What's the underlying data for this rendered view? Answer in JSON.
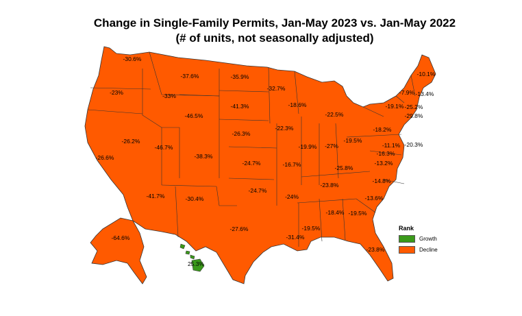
{
  "title": "Change in Single-Family Permits, Jan-May 2023 vs. Jan-May 2022",
  "subtitle": "(# of units, not seasonally adjusted)",
  "legend": {
    "title": "Rank",
    "items": [
      {
        "label": "Growth",
        "color": "#3a9a1a"
      },
      {
        "label": "Decline",
        "color": "#ff5a00"
      }
    ]
  },
  "colors": {
    "decline": "#ff5a00",
    "growth": "#3a9a1a",
    "border": "#333333"
  },
  "states": [
    {
      "label": "-30.6%"
    },
    {
      "label": "-23%"
    },
    {
      "label": "-33%"
    },
    {
      "label": "-37.6%"
    },
    {
      "label": "-35.9%"
    },
    {
      "label": "-32.7%"
    },
    {
      "label": "-41.3%"
    },
    {
      "label": "-46.5%"
    },
    {
      "label": "-26.3%"
    },
    {
      "label": "-18.6%"
    },
    {
      "label": "-22.5%"
    },
    {
      "label": "-22.3%"
    },
    {
      "label": "-26.2%"
    },
    {
      "label": "-46.7%"
    },
    {
      "label": "-38.3%"
    },
    {
      "label": "-26.6%"
    },
    {
      "label": "-24.7%"
    },
    {
      "label": "-16.7%"
    },
    {
      "label": "-19.9%"
    },
    {
      "label": "-27%"
    },
    {
      "label": "-19.5%"
    },
    {
      "label": "-18.2%"
    },
    {
      "label": "-41.7%"
    },
    {
      "label": "-30.4%"
    },
    {
      "label": "-24.7%"
    },
    {
      "label": "-24%"
    },
    {
      "label": "-27.6%"
    },
    {
      "label": "-25.8%"
    },
    {
      "label": "-23.8%"
    },
    {
      "label": "-16.3%"
    },
    {
      "label": "-13.2%"
    },
    {
      "label": "-11.1%"
    },
    {
      "label": "-20.3%"
    },
    {
      "label": "-14.8%"
    },
    {
      "label": "-13.6%"
    },
    {
      "label": "-18.4%"
    },
    {
      "label": "-19.5%"
    },
    {
      "label": "-19.5%"
    },
    {
      "label": "-31.4%"
    },
    {
      "label": "-23.8%"
    },
    {
      "label": "-19.1%"
    },
    {
      "label": "-7.9%"
    },
    {
      "label": "-10.1%"
    },
    {
      "label": "-13.4%"
    },
    {
      "label": "-25.2%"
    },
    {
      "label": "-29.8%"
    },
    {
      "label": "-64.6%"
    },
    {
      "label": "25.3%"
    }
  ]
}
